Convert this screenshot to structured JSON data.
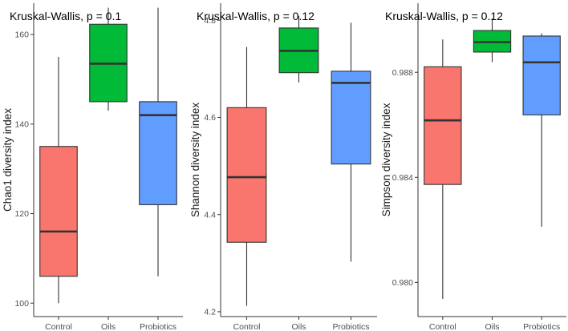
{
  "chart_data": [
    {
      "type": "boxplot",
      "annotation": "Kruskal-Wallis, p = 0.1",
      "ylabel": "Chao1 diversity index",
      "xlabel": "",
      "ylim": [
        97,
        167
      ],
      "yticks": [
        100,
        120,
        140,
        160
      ],
      "ytick_labels": [
        "100",
        "120",
        "140",
        "160"
      ],
      "categories": [
        "Control",
        "Oils",
        "Probiotics"
      ],
      "series": [
        {
          "name": "Control",
          "color": "#F8766D",
          "min": 100,
          "q1": 106,
          "median": 116,
          "q3": 135,
          "max": 155
        },
        {
          "name": "Oils",
          "color": "#00BA38",
          "min": 143,
          "q1": 145,
          "median": 153.5,
          "q3": 162.3,
          "max": 166
        },
        {
          "name": "Probiotics",
          "color": "#619CFF",
          "min": 106,
          "q1": 122,
          "median": 142,
          "q3": 145,
          "max": 166
        }
      ]
    },
    {
      "type": "boxplot",
      "annotation": "Kruskal-Wallis, p = 0.12",
      "ylabel": "Shannon diversity index",
      "xlabel": "",
      "ylim": [
        4.19,
        4.835
      ],
      "yticks": [
        4.2,
        4.4,
        4.6,
        4.8
      ],
      "ytick_labels": [
        "4.2",
        "4.4",
        "4.6",
        "4.8"
      ],
      "categories": [
        "Control",
        "Oils",
        "Probiotics"
      ],
      "series": [
        {
          "name": "Control",
          "color": "#F8766D",
          "min": 4.212,
          "q1": 4.343,
          "median": 4.477,
          "q3": 4.62,
          "max": 4.745
        },
        {
          "name": "Oils",
          "color": "#00BA38",
          "min": 4.672,
          "q1": 4.692,
          "median": 4.737,
          "q3": 4.784,
          "max": 4.809
        },
        {
          "name": "Probiotics",
          "color": "#619CFF",
          "min": 4.303,
          "q1": 4.504,
          "median": 4.671,
          "q3": 4.695,
          "max": 4.795
        }
      ]
    },
    {
      "type": "boxplot",
      "annotation": "Kruskal-Wallis, p = 0.12",
      "ylabel": "Simpson diversity index",
      "xlabel": "",
      "ylim": [
        0.9787,
        0.99063
      ],
      "yticks": [
        0.98,
        0.984,
        0.988
      ],
      "ytick_labels": [
        "0.980",
        "0.984",
        "0.988"
      ],
      "categories": [
        "Control",
        "Oils",
        "Probiotics"
      ],
      "series": [
        {
          "name": "Control",
          "color": "#F8766D",
          "min": 0.97937,
          "q1": 0.98373,
          "median": 0.98617,
          "q3": 0.98821,
          "max": 0.98925
        },
        {
          "name": "Oils",
          "color": "#00BA38",
          "min": 0.98839,
          "q1": 0.98877,
          "median": 0.98915,
          "q3": 0.98959,
          "max": 0.99005
        },
        {
          "name": "Probiotics",
          "color": "#619CFF",
          "min": 0.98212,
          "q1": 0.98638,
          "median": 0.98838,
          "q3": 0.98938,
          "max": 0.98948
        }
      ]
    }
  ]
}
